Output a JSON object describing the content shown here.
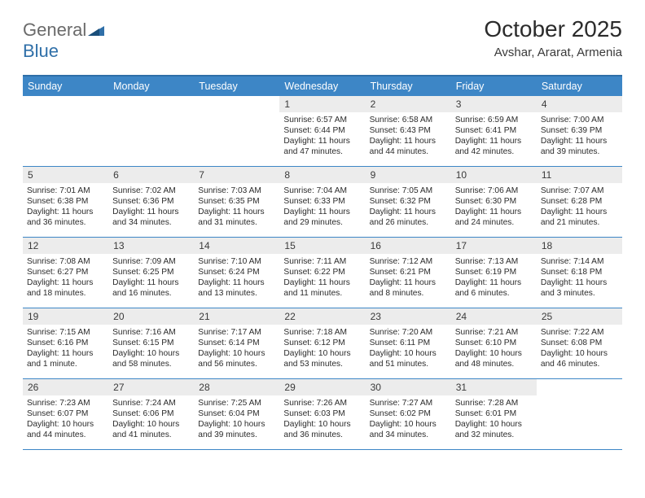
{
  "logo": {
    "word1": "General",
    "word2": "Blue"
  },
  "title": "October 2025",
  "location": "Avshar, Ararat, Armenia",
  "colors": {
    "header_blue": "#3d86c6",
    "rule_blue": "#2f6fa8",
    "daynum_bg": "#ececec",
    "text": "#2b2b2b",
    "logo_gray": "#6a6a6a"
  },
  "daysOfWeek": [
    "Sunday",
    "Monday",
    "Tuesday",
    "Wednesday",
    "Thursday",
    "Friday",
    "Saturday"
  ],
  "weeks": [
    [
      {
        "n": "",
        "sunrise": "",
        "sunset": "",
        "daylight": ""
      },
      {
        "n": "",
        "sunrise": "",
        "sunset": "",
        "daylight": ""
      },
      {
        "n": "",
        "sunrise": "",
        "sunset": "",
        "daylight": ""
      },
      {
        "n": "1",
        "sunrise": "6:57 AM",
        "sunset": "6:44 PM",
        "daylight": "11 hours and 47 minutes."
      },
      {
        "n": "2",
        "sunrise": "6:58 AM",
        "sunset": "6:43 PM",
        "daylight": "11 hours and 44 minutes."
      },
      {
        "n": "3",
        "sunrise": "6:59 AM",
        "sunset": "6:41 PM",
        "daylight": "11 hours and 42 minutes."
      },
      {
        "n": "4",
        "sunrise": "7:00 AM",
        "sunset": "6:39 PM",
        "daylight": "11 hours and 39 minutes."
      }
    ],
    [
      {
        "n": "5",
        "sunrise": "7:01 AM",
        "sunset": "6:38 PM",
        "daylight": "11 hours and 36 minutes."
      },
      {
        "n": "6",
        "sunrise": "7:02 AM",
        "sunset": "6:36 PM",
        "daylight": "11 hours and 34 minutes."
      },
      {
        "n": "7",
        "sunrise": "7:03 AM",
        "sunset": "6:35 PM",
        "daylight": "11 hours and 31 minutes."
      },
      {
        "n": "8",
        "sunrise": "7:04 AM",
        "sunset": "6:33 PM",
        "daylight": "11 hours and 29 minutes."
      },
      {
        "n": "9",
        "sunrise": "7:05 AM",
        "sunset": "6:32 PM",
        "daylight": "11 hours and 26 minutes."
      },
      {
        "n": "10",
        "sunrise": "7:06 AM",
        "sunset": "6:30 PM",
        "daylight": "11 hours and 24 minutes."
      },
      {
        "n": "11",
        "sunrise": "7:07 AM",
        "sunset": "6:28 PM",
        "daylight": "11 hours and 21 minutes."
      }
    ],
    [
      {
        "n": "12",
        "sunrise": "7:08 AM",
        "sunset": "6:27 PM",
        "daylight": "11 hours and 18 minutes."
      },
      {
        "n": "13",
        "sunrise": "7:09 AM",
        "sunset": "6:25 PM",
        "daylight": "11 hours and 16 minutes."
      },
      {
        "n": "14",
        "sunrise": "7:10 AM",
        "sunset": "6:24 PM",
        "daylight": "11 hours and 13 minutes."
      },
      {
        "n": "15",
        "sunrise": "7:11 AM",
        "sunset": "6:22 PM",
        "daylight": "11 hours and 11 minutes."
      },
      {
        "n": "16",
        "sunrise": "7:12 AM",
        "sunset": "6:21 PM",
        "daylight": "11 hours and 8 minutes."
      },
      {
        "n": "17",
        "sunrise": "7:13 AM",
        "sunset": "6:19 PM",
        "daylight": "11 hours and 6 minutes."
      },
      {
        "n": "18",
        "sunrise": "7:14 AM",
        "sunset": "6:18 PM",
        "daylight": "11 hours and 3 minutes."
      }
    ],
    [
      {
        "n": "19",
        "sunrise": "7:15 AM",
        "sunset": "6:16 PM",
        "daylight": "11 hours and 1 minute."
      },
      {
        "n": "20",
        "sunrise": "7:16 AM",
        "sunset": "6:15 PM",
        "daylight": "10 hours and 58 minutes."
      },
      {
        "n": "21",
        "sunrise": "7:17 AM",
        "sunset": "6:14 PM",
        "daylight": "10 hours and 56 minutes."
      },
      {
        "n": "22",
        "sunrise": "7:18 AM",
        "sunset": "6:12 PM",
        "daylight": "10 hours and 53 minutes."
      },
      {
        "n": "23",
        "sunrise": "7:20 AM",
        "sunset": "6:11 PM",
        "daylight": "10 hours and 51 minutes."
      },
      {
        "n": "24",
        "sunrise": "7:21 AM",
        "sunset": "6:10 PM",
        "daylight": "10 hours and 48 minutes."
      },
      {
        "n": "25",
        "sunrise": "7:22 AM",
        "sunset": "6:08 PM",
        "daylight": "10 hours and 46 minutes."
      }
    ],
    [
      {
        "n": "26",
        "sunrise": "7:23 AM",
        "sunset": "6:07 PM",
        "daylight": "10 hours and 44 minutes."
      },
      {
        "n": "27",
        "sunrise": "7:24 AM",
        "sunset": "6:06 PM",
        "daylight": "10 hours and 41 minutes."
      },
      {
        "n": "28",
        "sunrise": "7:25 AM",
        "sunset": "6:04 PM",
        "daylight": "10 hours and 39 minutes."
      },
      {
        "n": "29",
        "sunrise": "7:26 AM",
        "sunset": "6:03 PM",
        "daylight": "10 hours and 36 minutes."
      },
      {
        "n": "30",
        "sunrise": "7:27 AM",
        "sunset": "6:02 PM",
        "daylight": "10 hours and 34 minutes."
      },
      {
        "n": "31",
        "sunrise": "7:28 AM",
        "sunset": "6:01 PM",
        "daylight": "10 hours and 32 minutes."
      },
      {
        "n": "",
        "sunrise": "",
        "sunset": "",
        "daylight": ""
      }
    ]
  ],
  "labels": {
    "sunrise": "Sunrise:",
    "sunset": "Sunset:",
    "daylight": "Daylight:"
  }
}
